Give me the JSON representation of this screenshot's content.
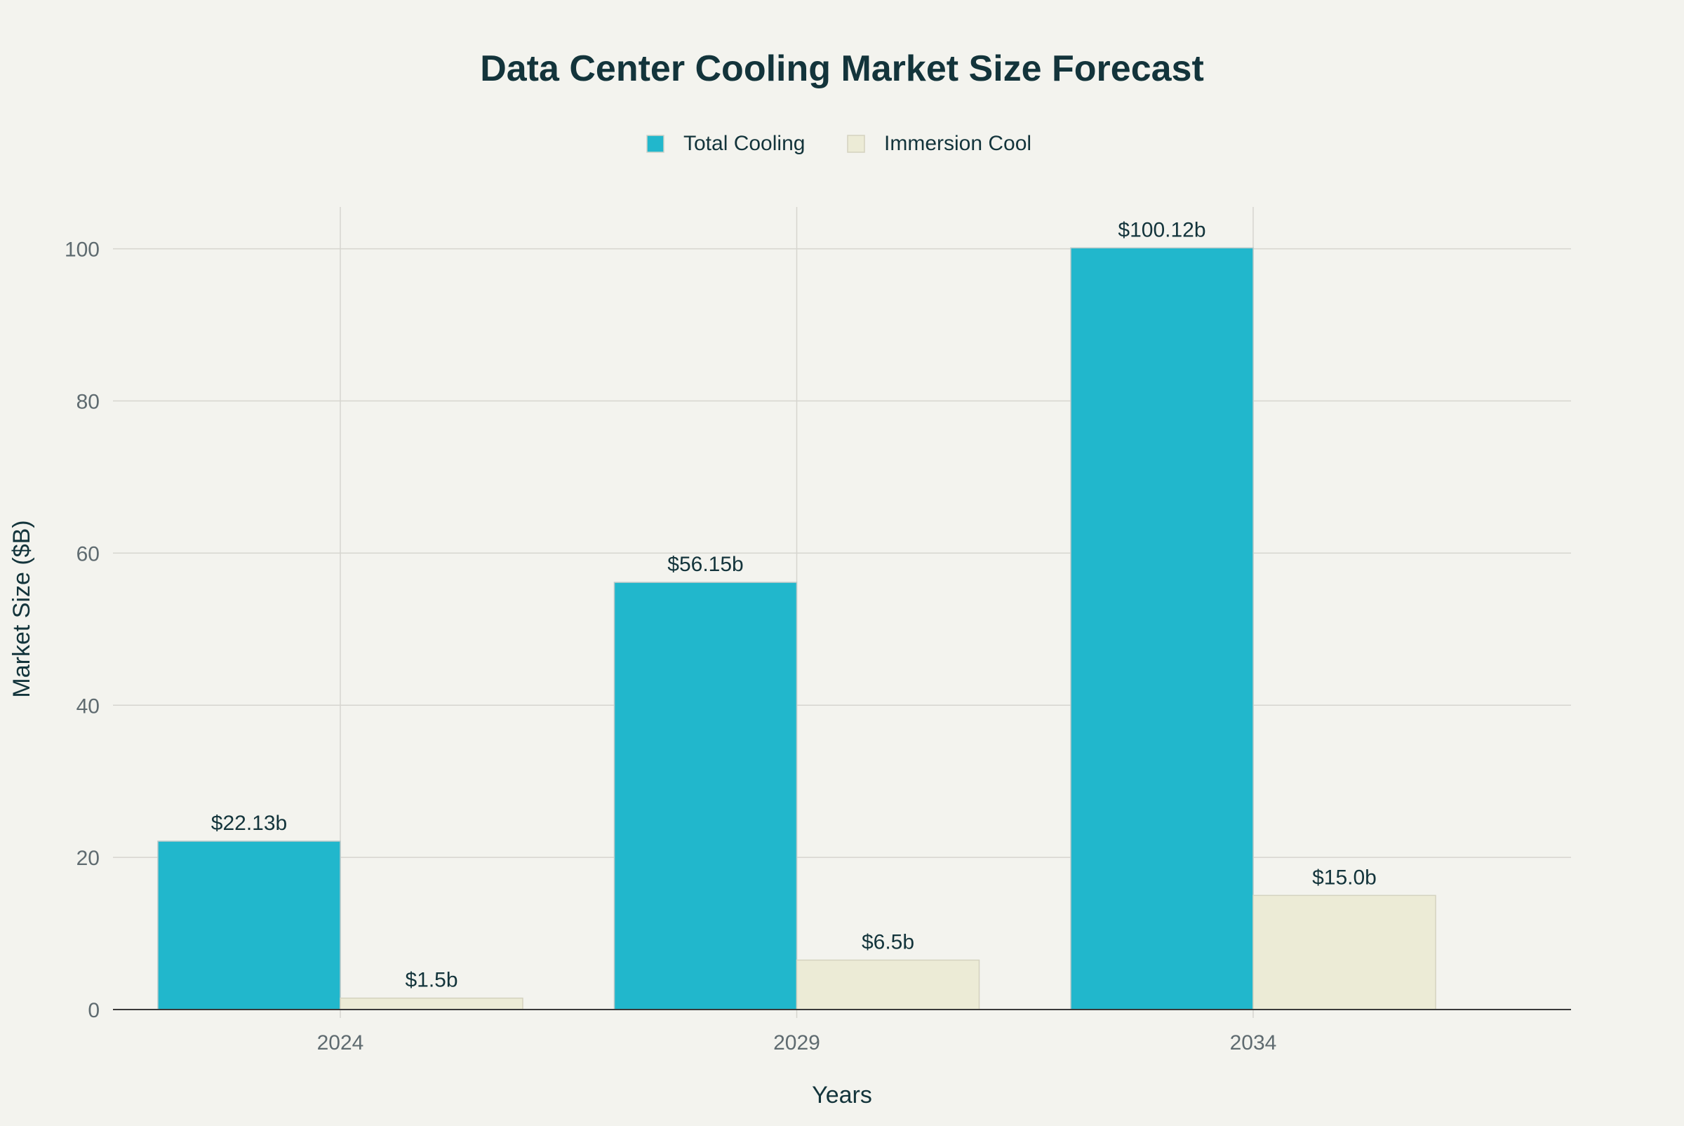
{
  "chart_data": {
    "type": "bar",
    "title": "Data Center Cooling Market Size Forecast",
    "xlabel": "Years",
    "ylabel": "Market Size ($B)",
    "categories": [
      "2024",
      "2029",
      "2034"
    ],
    "series": [
      {
        "name": "Total Cooling",
        "values": [
          22.13,
          56.15,
          100.12
        ],
        "labels": [
          "$22.13b",
          "$56.15b",
          "$100.12b"
        ],
        "color": "#21b7cc"
      },
      {
        "name": "Immersion Cool",
        "values": [
          1.5,
          6.5,
          15.0
        ],
        "labels": [
          "$1.5b",
          "$6.5b",
          "$15.0b"
        ],
        "color": "#ecebd6"
      }
    ],
    "ylim": [
      0,
      105.5
    ],
    "yticks": [
      0,
      20,
      40,
      60,
      80,
      100
    ],
    "grid": true,
    "legend": "top-center"
  }
}
